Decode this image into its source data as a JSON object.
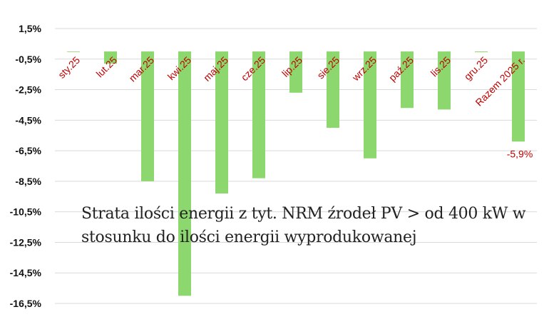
{
  "chart_data": {
    "type": "bar",
    "title": "Strata ilości energii z tyt. NRM źrodeł PV > od 400 kW w stosunku do ilości energii wyprodukowanej",
    "categories": [
      "sty.25",
      "lut.25",
      "mar.25",
      "kwi.25",
      "maj.25",
      "cze.25",
      "lip.25",
      "sie.25",
      "wrz.25",
      "paź.25",
      "lis.25",
      "gru.25",
      "Razem 2025 r."
    ],
    "values": [
      0.0,
      -0.8,
      -8.5,
      -16.0,
      -9.3,
      -8.3,
      -2.7,
      -5.0,
      -7.0,
      -3.7,
      -3.8,
      -0.05,
      -5.9
    ],
    "data_labels": [
      "",
      "",
      "",
      "",
      "",
      "",
      "",
      "",
      "",
      "",
      "",
      "",
      "-5,9%"
    ],
    "ylim": [
      -16.5,
      1.5
    ],
    "yticks": [
      "1,5%",
      "-0,5%",
      "-2,5%",
      "-4,5%",
      "-6,5%",
      "-8,5%",
      "-10,5%",
      "-12,5%",
      "-14,5%",
      "-16,5%"
    ],
    "ytick_values": [
      1.5,
      -0.5,
      -2.5,
      -4.5,
      -6.5,
      -8.5,
      -10.5,
      -12.5,
      -14.5,
      -16.5
    ],
    "bar_color": "#8dd86e",
    "label_color": "#c00000",
    "grid": true,
    "legend": "none"
  }
}
